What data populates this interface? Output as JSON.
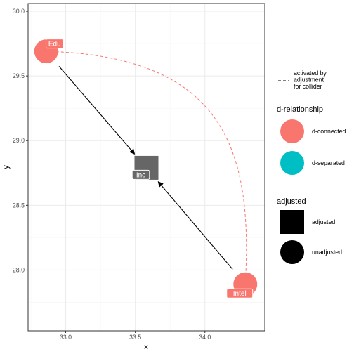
{
  "chart_data": {
    "type": "scatter",
    "title": "",
    "xlabel": "x",
    "ylabel": "y",
    "xlim": [
      32.73,
      34.43
    ],
    "ylim": [
      27.53,
      30.06
    ],
    "xticks": [
      33.0,
      33.5,
      34.0
    ],
    "xtick_labels": [
      "33.0",
      "33.5",
      "34.0"
    ],
    "yticks": [
      28.0,
      28.5,
      29.0,
      29.5,
      30.0
    ],
    "ytick_labels": [
      "28.0",
      "28.5",
      "29.0",
      "29.5",
      "30.0"
    ],
    "grid": true,
    "nodes": [
      {
        "label": "Edu",
        "x": 32.86,
        "y": 29.69,
        "d_relationship": "d-connected",
        "adjusted": "unadjusted"
      },
      {
        "label": "Inc",
        "x": 33.58,
        "y": 28.79,
        "d_relationship": "none",
        "adjusted": "adjusted"
      },
      {
        "label": "Intel",
        "x": 34.29,
        "y": 27.89,
        "d_relationship": "d-connected",
        "adjusted": "unadjusted"
      }
    ],
    "edges": [
      {
        "from": "Edu",
        "to": "Inc",
        "style": "solid"
      },
      {
        "from": "Intel",
        "to": "Inc",
        "style": "solid"
      }
    ],
    "collider_edge": {
      "from": "Edu",
      "to": "Intel",
      "style": "dashed",
      "color": "#F8766D"
    },
    "legend": {
      "placement": "right",
      "linetype_label": "activated by\nadjustment\nfor collider",
      "d_relationship": {
        "title": "d-relationship",
        "items": [
          {
            "label": "d-connected",
            "color": "#F8766D"
          },
          {
            "label": "d-separated",
            "color": "#00BFC4"
          }
        ]
      },
      "adjusted": {
        "title": "adjusted",
        "items": [
          {
            "label": "adjusted",
            "shape": "square"
          },
          {
            "label": "unadjusted",
            "shape": "circle"
          }
        ]
      }
    }
  },
  "colors": {
    "d_connected": "#F8766D",
    "d_separated": "#00BFC4",
    "neutral_node": "#666666",
    "panel_border": "#333333",
    "grid_major": "#ebebeb",
    "grid_minor": "#f5f5f5"
  }
}
